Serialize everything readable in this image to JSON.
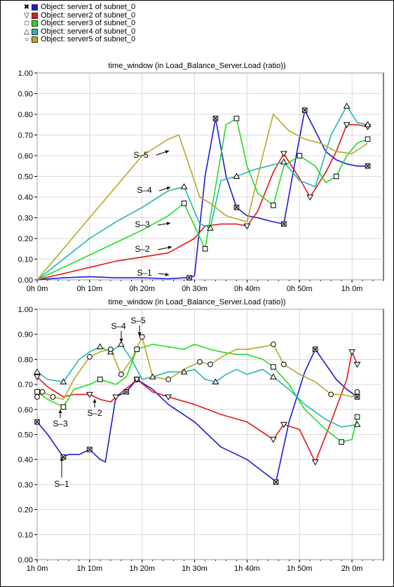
{
  "legend": [
    {
      "marker": "x",
      "color": "#1c1cd6",
      "label": "Object: server1 of subnet_0"
    },
    {
      "marker": "tri-down",
      "color": "#e01818",
      "label": "Object: server2 of subnet_0"
    },
    {
      "marker": "square",
      "color": "#22dd22",
      "label": "Object: server3 of subnet_0"
    },
    {
      "marker": "tri-up",
      "color": "#22b8b0",
      "label": "Object: server4 of subnet_0"
    },
    {
      "marker": "circle",
      "color": "#b8a828",
      "label": "Object: server5 of subnet_0"
    }
  ],
  "chart_data": [
    {
      "type": "line",
      "title": "time_window (in Load_Balance_Server.Load (ratio))",
      "x_unit": "minutes",
      "xlim": [
        0,
        66
      ],
      "ylim": [
        0,
        1
      ],
      "xticks": [
        0,
        10,
        20,
        30,
        40,
        50,
        60
      ],
      "xtick_labels": [
        "0h 0m",
        "0h 10m",
        "0h 20m",
        "0h 30m",
        "0h 40m",
        "0h 50m",
        "1h 0m"
      ],
      "yticks": [
        0,
        0.1,
        0.2,
        0.3,
        0.4,
        0.5,
        0.6,
        0.7,
        0.8,
        0.9,
        1.0
      ],
      "ytick_labels": [
        "0.00",
        "0.10",
        "0.20",
        "0.30",
        "0.40",
        "0.50",
        "0.60",
        "0.70",
        "0.80",
        "0.90",
        "1.00"
      ],
      "grid": true,
      "annotations": [
        {
          "text": "S–1",
          "series": 0
        },
        {
          "text": "S–2",
          "series": 1
        },
        {
          "text": "S–3",
          "series": 2
        },
        {
          "text": "S–4",
          "series": 3
        },
        {
          "text": "S–5",
          "series": 4
        }
      ],
      "series": [
        {
          "name": "Object: server1 of subnet_0",
          "marker": "x",
          "color": "#1c1cd6",
          "x": [
            0,
            5,
            10,
            15,
            20,
            25,
            28,
            29,
            30,
            32,
            34,
            36,
            38,
            40,
            42,
            45,
            47,
            49,
            51,
            53,
            55,
            57,
            59,
            61,
            63
          ],
          "y": [
            0,
            0.01,
            0.015,
            0.01,
            0.01,
            0.005,
            0.01,
            0.01,
            0.02,
            0.5,
            0.78,
            0.5,
            0.35,
            0.31,
            0.3,
            0.28,
            0.27,
            0.55,
            0.82,
            0.72,
            0.62,
            0.58,
            0.56,
            0.55,
            0.55
          ],
          "marker_idx": [
            7,
            10,
            12,
            16,
            18,
            24
          ]
        },
        {
          "name": "Object: server2 of subnet_0",
          "marker": "tri-down",
          "color": "#e01818",
          "x": [
            0,
            5,
            10,
            15,
            20,
            25,
            30,
            32,
            35,
            38,
            40,
            42,
            45,
            47,
            50,
            52,
            55,
            57,
            59,
            61,
            63
          ],
          "y": [
            0,
            0.03,
            0.06,
            0.09,
            0.11,
            0.13,
            0.2,
            0.26,
            0.27,
            0.27,
            0.26,
            0.33,
            0.52,
            0.61,
            0.49,
            0.4,
            0.52,
            0.62,
            0.75,
            0.75,
            0.74
          ],
          "marker_idx": [
            10,
            13,
            15,
            18,
            20
          ]
        },
        {
          "name": "Object: server3 of subnet_0",
          "marker": "square",
          "color": "#22dd22",
          "x": [
            0,
            5,
            10,
            15,
            20,
            25,
            28,
            32,
            34,
            36,
            38,
            40,
            42,
            45,
            47,
            50,
            53,
            55,
            57,
            59,
            61,
            63
          ],
          "y": [
            0,
            0.06,
            0.12,
            0.18,
            0.24,
            0.31,
            0.37,
            0.15,
            0.45,
            0.75,
            0.78,
            0.55,
            0.42,
            0.36,
            0.55,
            0.6,
            0.55,
            0.47,
            0.5,
            0.6,
            0.66,
            0.68
          ],
          "marker_idx": [
            6,
            7,
            10,
            13,
            15,
            18,
            21
          ]
        },
        {
          "name": "Object: server4 of subnet_0",
          "marker": "tri-up",
          "color": "#22b8b0",
          "x": [
            0,
            5,
            10,
            15,
            20,
            25,
            28,
            31,
            33,
            35,
            38,
            41,
            44,
            47,
            50,
            53,
            56,
            59,
            61,
            63
          ],
          "y": [
            0,
            0.1,
            0.2,
            0.28,
            0.35,
            0.43,
            0.45,
            0.27,
            0.25,
            0.48,
            0.5,
            0.53,
            0.55,
            0.57,
            0.48,
            0.45,
            0.7,
            0.84,
            0.76,
            0.75
          ],
          "marker_idx": [
            6,
            8,
            10,
            13,
            17,
            19
          ]
        },
        {
          "name": "Object: server5 of subnet_0",
          "marker": "circle",
          "color": "#b8a828",
          "x": [
            0,
            5,
            10,
            15,
            20,
            25,
            27,
            29,
            31,
            33,
            36,
            40,
            43,
            45,
            48,
            51,
            54,
            57,
            60,
            63
          ],
          "y": [
            0,
            0.15,
            0.3,
            0.45,
            0.6,
            0.68,
            0.7,
            0.55,
            0.4,
            0.37,
            0.31,
            0.28,
            0.6,
            0.8,
            0.72,
            0.68,
            0.66,
            0.62,
            0.61,
            0.66
          ],
          "marker_idx": []
        }
      ]
    },
    {
      "type": "line",
      "title": "time_window (in Load_Balance_Server.Load (ratio))",
      "x_unit": "minutes",
      "xlim": [
        60,
        126
      ],
      "ylim": [
        0,
        1
      ],
      "xticks": [
        60,
        70,
        80,
        90,
        100,
        110,
        120
      ],
      "xtick_labels": [
        "1h 0m",
        "1h 10m",
        "1h 20m",
        "1h 30m",
        "1h 40m",
        "1h 50m",
        "2h 0m"
      ],
      "yticks": [
        0,
        0.1,
        0.2,
        0.3,
        0.4,
        0.5,
        0.6,
        0.7,
        0.8,
        0.9,
        1.0
      ],
      "ytick_labels": [
        "0.00",
        "0.10",
        "0.20",
        "0.30",
        "0.40",
        "0.50",
        "0.60",
        "0.70",
        "0.80",
        "0.90",
        "1.00"
      ],
      "grid": true,
      "annotations": [
        {
          "text": "S–1",
          "series": 0
        },
        {
          "text": "S–2",
          "series": 1
        },
        {
          "text": "S–3",
          "series": 2
        },
        {
          "text": "S–4",
          "series": 3
        },
        {
          "text": "S–5",
          "series": 4
        }
      ],
      "series": [
        {
          "name": "Object: server1 of subnet_0",
          "marker": "x",
          "color": "#1c1cd6",
          "x": [
            60,
            62,
            64,
            65,
            66,
            68,
            70,
            72,
            73,
            75,
            77,
            79,
            82,
            85,
            90,
            95,
            100,
            105,
            105.5,
            108,
            111,
            113,
            115,
            117,
            119,
            121
          ],
          "y": [
            0.55,
            0.5,
            0.44,
            0.41,
            0.42,
            0.42,
            0.44,
            0.4,
            0.39,
            0.65,
            0.67,
            0.72,
            0.68,
            0.62,
            0.55,
            0.45,
            0.4,
            0.32,
            0.31,
            0.55,
            0.75,
            0.84,
            0.78,
            0.72,
            0.68,
            0.65
          ],
          "marker_idx": [
            0,
            3,
            6,
            10,
            11,
            18,
            21,
            25
          ]
        },
        {
          "name": "Object: server2 of subnet_0",
          "marker": "tri-down",
          "color": "#e01818",
          "x": [
            60,
            62,
            65,
            67,
            70,
            72,
            74,
            75,
            78,
            79,
            82,
            85,
            90,
            95,
            100,
            105,
            107,
            110,
            113,
            116,
            119,
            120,
            121
          ],
          "y": [
            0.73,
            0.69,
            0.65,
            0.66,
            0.66,
            0.64,
            0.63,
            0.65,
            0.7,
            0.72,
            0.67,
            0.65,
            0.62,
            0.58,
            0.55,
            0.48,
            0.54,
            0.52,
            0.39,
            0.55,
            0.72,
            0.83,
            0.78
          ],
          "marker_idx": [
            0,
            4,
            7,
            9,
            11,
            15,
            16,
            18,
            21,
            22
          ]
        },
        {
          "name": "Object: server3 of subnet_0",
          "marker": "square",
          "color": "#22dd22",
          "x": [
            60,
            62,
            65,
            67,
            70,
            72,
            75,
            77,
            79,
            82,
            85,
            88,
            90,
            93,
            95,
            98,
            100,
            103,
            105,
            108,
            111,
            115,
            118,
            120,
            121
          ],
          "y": [
            0.67,
            0.64,
            0.61,
            0.68,
            0.7,
            0.72,
            0.7,
            0.73,
            0.84,
            0.86,
            0.85,
            0.84,
            0.86,
            0.84,
            0.83,
            0.82,
            0.82,
            0.8,
            0.77,
            0.7,
            0.6,
            0.52,
            0.47,
            0.48,
            0.57
          ],
          "marker_idx": [
            0,
            2,
            5,
            8,
            18,
            22,
            24
          ]
        },
        {
          "name": "Object: server4 of subnet_0",
          "marker": "tri-up",
          "color": "#22b8b0",
          "x": [
            60,
            62,
            65,
            68,
            70,
            72,
            74,
            76,
            78,
            80,
            82,
            85,
            88,
            90,
            92,
            94,
            96,
            98,
            100,
            103,
            105,
            108,
            111,
            115,
            118,
            121
          ],
          "y": [
            0.75,
            0.72,
            0.71,
            0.8,
            0.83,
            0.85,
            0.83,
            0.86,
            0.8,
            0.72,
            0.73,
            0.75,
            0.75,
            0.76,
            0.72,
            0.71,
            0.74,
            0.76,
            0.74,
            0.76,
            0.73,
            0.68,
            0.62,
            0.56,
            0.53,
            0.54
          ],
          "marker_idx": [
            0,
            2,
            5,
            6,
            7,
            10,
            12,
            15,
            20,
            25
          ]
        },
        {
          "name": "Object: server5 of subnet_0",
          "marker": "circle",
          "color": "#b8a828",
          "x": [
            60,
            61,
            63,
            65,
            67,
            70,
            72,
            74,
            76,
            78,
            80,
            82,
            85,
            88,
            91,
            93,
            96,
            98,
            100,
            103,
            105,
            107,
            110,
            113,
            116,
            118,
            120,
            121
          ],
          "y": [
            0.65,
            0.67,
            0.65,
            0.64,
            0.72,
            0.81,
            0.83,
            0.84,
            0.74,
            0.8,
            0.89,
            0.73,
            0.72,
            0.76,
            0.79,
            0.78,
            0.82,
            0.84,
            0.84,
            0.85,
            0.86,
            0.78,
            0.74,
            0.71,
            0.66,
            0.66,
            0.65,
            0.67
          ],
          "marker_idx": [
            0,
            1,
            2,
            5,
            7,
            8,
            10,
            12,
            14,
            15,
            20,
            21,
            24,
            27
          ]
        }
      ]
    }
  ]
}
